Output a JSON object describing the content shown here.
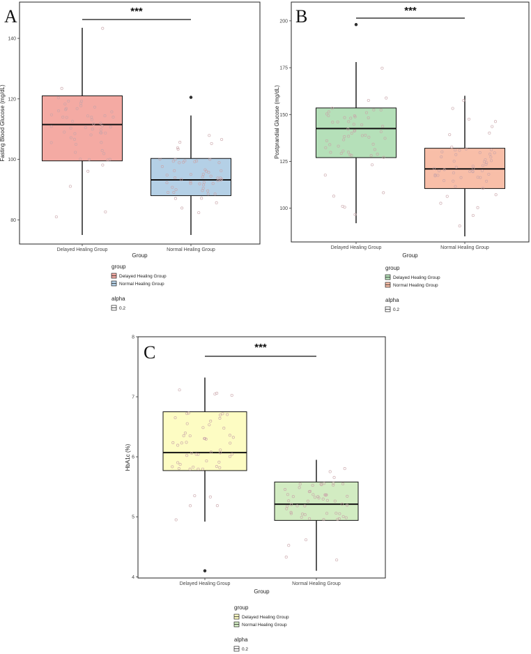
{
  "chart_data": [
    {
      "type": "box",
      "panel_label": "A",
      "significance": "***",
      "xlabel": "Group",
      "ylabel": "Fasting Blood Glucose (mg/dL)",
      "categories": [
        "Delayed Healing Group",
        "Normal Healing Group"
      ],
      "ylim": [
        72,
        152
      ],
      "yticks": [
        80,
        100,
        120,
        140
      ],
      "boxes": [
        {
          "group": "Delayed Healing Group",
          "whisker_low": 75,
          "q1": 99.5,
          "median": 111.5,
          "q3": 121,
          "whisker_high": 143.5,
          "outliers": [],
          "color": "#f4aaa3"
        },
        {
          "group": "Normal Healing Group",
          "whisker_low": 75,
          "q1": 88,
          "median": 93.2,
          "q3": 100.3,
          "whisker_high": 114.5,
          "outliers": [
            120.5
          ],
          "color": "#b4d0e6"
        }
      ],
      "legend": {
        "title": "group",
        "entries": [
          "Delayed Healing Group",
          "Normal Healing Group"
        ],
        "alpha_title": "alpha",
        "alpha_value": "0.2"
      }
    },
    {
      "type": "box",
      "panel_label": "B",
      "significance": "***",
      "xlabel": "Group",
      "ylabel": "Postprandial Glucose (mg/dL)",
      "categories": [
        "Delayed Healing Group",
        "Normal Healing Group"
      ],
      "ylim": [
        82,
        210
      ],
      "yticks": [
        100,
        125,
        150,
        175,
        200
      ],
      "boxes": [
        {
          "group": "Delayed Healing Group",
          "whisker_low": 92,
          "q1": 127,
          "median": 142.5,
          "q3": 153.5,
          "whisker_high": 178,
          "outliers": [
            198
          ],
          "color": "#b5e0b9"
        },
        {
          "group": "Normal Healing Group",
          "whisker_low": 85,
          "q1": 110.5,
          "median": 121,
          "q3": 132,
          "whisker_high": 160,
          "outliers": [],
          "color": "#f8bea8"
        }
      ],
      "legend": {
        "title": "group",
        "entries": [
          "Delayed Healing Group",
          "Normal Healing Group"
        ],
        "alpha_title": "alpha",
        "alpha_value": "0.2"
      }
    },
    {
      "type": "box",
      "panel_label": "C",
      "significance": "***",
      "xlabel": "Group",
      "ylabel": "HbA1c (%)",
      "categories": [
        "Delayed Healing Group",
        "Normal Healing Group"
      ],
      "ylim": [
        3.98,
        8
      ],
      "yticks": [
        4,
        5,
        6,
        7,
        8
      ],
      "boxes": [
        {
          "group": "Delayed Healing Group",
          "whisker_low": 4.92,
          "q1": 5.77,
          "median": 6.07,
          "q3": 6.75,
          "whisker_high": 7.32,
          "outliers": [
            4.1
          ],
          "color": "#fdfcc3"
        },
        {
          "group": "Normal Healing Group",
          "whisker_low": 4.1,
          "q1": 4.94,
          "median": 5.21,
          "q3": 5.58,
          "whisker_high": 5.95,
          "outliers": [],
          "color": "#d2ecc2"
        }
      ],
      "legend": {
        "title": "group",
        "entries": [
          "Delayed Healing Group",
          "Normal Healing Group"
        ],
        "alpha_title": "alpha",
        "alpha_value": "0.2"
      }
    }
  ]
}
